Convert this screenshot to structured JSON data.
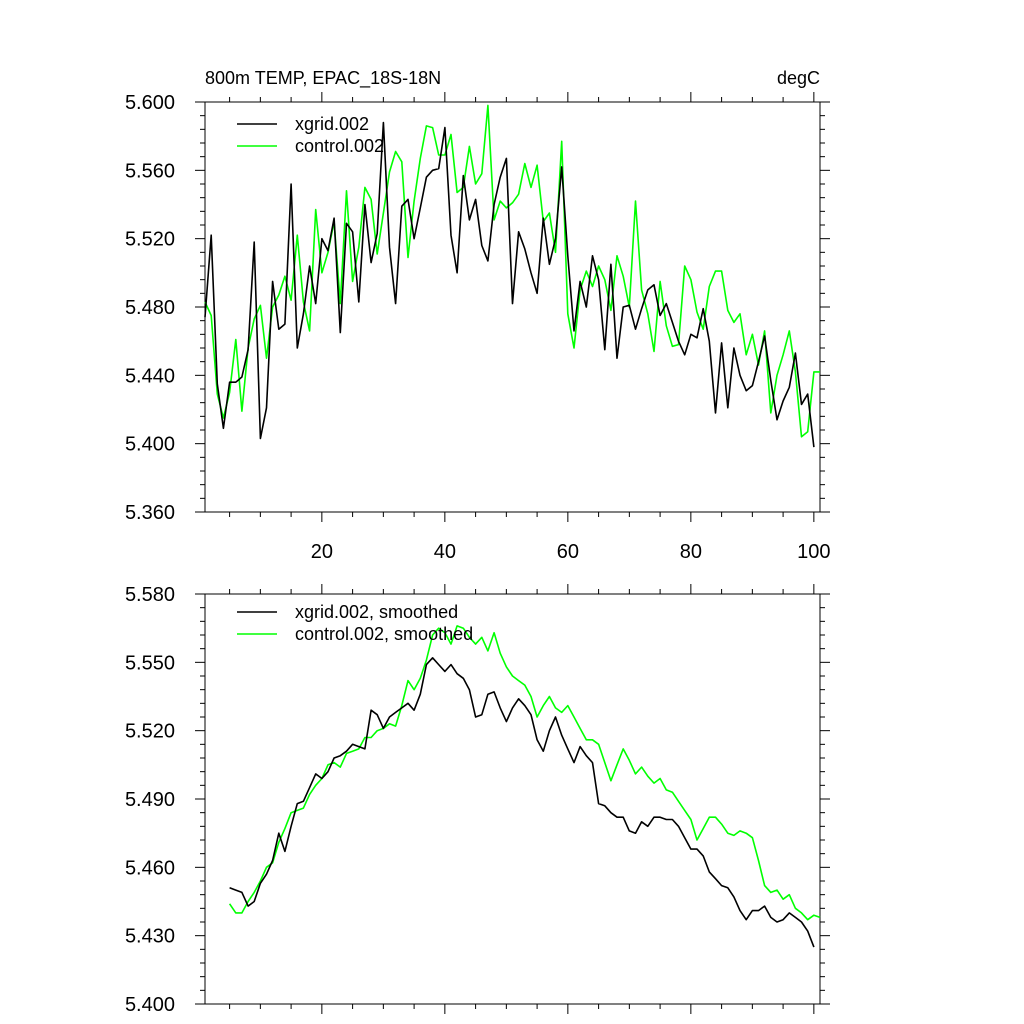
{
  "chart_data": [
    {
      "type": "line",
      "title": "800m TEMP, EPAC_18S-18N",
      "title_right": "degC",
      "xlim": [
        1,
        101
      ],
      "ylim": [
        5.36,
        5.6
      ],
      "ytick_values": [
        5.36,
        5.4,
        5.44,
        5.48,
        5.52,
        5.56,
        5.6
      ],
      "yticks": [
        "5.360",
        "5.400",
        "5.440",
        "5.480",
        "5.520",
        "5.560",
        "5.600"
      ],
      "xtick_values": [
        20,
        40,
        60,
        80,
        100
      ],
      "xticks": [
        "20",
        "40",
        "60",
        "80",
        "100"
      ],
      "grid": false,
      "legend_position": "top-left",
      "series": [
        {
          "name": "xgrid.002",
          "color": "#000000",
          "values": [
            5.474,
            5.522,
            5.435,
            5.409,
            5.436,
            5.436,
            5.439,
            5.455,
            5.518,
            5.403,
            5.421,
            5.495,
            5.467,
            5.47,
            5.552,
            5.456,
            5.476,
            5.504,
            5.482,
            5.52,
            5.513,
            5.532,
            5.465,
            5.529,
            5.524,
            5.483,
            5.54,
            5.506,
            5.523,
            5.588,
            5.515,
            5.482,
            5.539,
            5.543,
            5.52,
            5.538,
            5.556,
            5.56,
            5.561,
            5.585,
            5.522,
            5.5,
            5.557,
            5.531,
            5.543,
            5.516,
            5.507,
            5.54,
            5.556,
            5.567,
            5.482,
            5.524,
            5.514,
            5.5,
            5.488,
            5.532,
            5.505,
            5.52,
            5.562,
            5.51,
            5.466,
            5.495,
            5.48,
            5.51,
            5.496,
            5.455,
            5.505,
            5.45,
            5.48,
            5.481,
            5.467,
            5.479,
            5.49,
            5.493,
            5.475,
            5.482,
            5.471,
            5.46,
            5.452,
            5.464,
            5.462,
            5.479,
            5.46,
            5.418,
            5.459,
            5.421,
            5.456,
            5.44,
            5.431,
            5.434,
            5.448,
            5.463,
            5.437,
            5.414,
            5.425,
            5.433,
            5.453,
            5.423,
            5.429,
            5.398
          ]
        },
        {
          "name": "control.002",
          "color": "#00ff00",
          "values": [
            5.483,
            5.475,
            5.429,
            5.415,
            5.43,
            5.461,
            5.419,
            5.456,
            5.473,
            5.481,
            5.45,
            5.48,
            5.487,
            5.498,
            5.484,
            5.522,
            5.483,
            5.466,
            5.537,
            5.5,
            5.512,
            5.53,
            5.482,
            5.548,
            5.495,
            5.515,
            5.55,
            5.543,
            5.511,
            5.535,
            5.559,
            5.571,
            5.565,
            5.509,
            5.542,
            5.567,
            5.586,
            5.585,
            5.569,
            5.569,
            5.581,
            5.547,
            5.55,
            5.574,
            5.552,
            5.558,
            5.598,
            5.531,
            5.542,
            5.538,
            5.541,
            5.546,
            5.564,
            5.55,
            5.563,
            5.53,
            5.535,
            5.512,
            5.577,
            5.476,
            5.456,
            5.49,
            5.501,
            5.492,
            5.504,
            5.496,
            5.478,
            5.51,
            5.498,
            5.48,
            5.542,
            5.49,
            5.476,
            5.454,
            5.495,
            5.469,
            5.457,
            5.458,
            5.504,
            5.496,
            5.477,
            5.467,
            5.492,
            5.501,
            5.501,
            5.478,
            5.471,
            5.476,
            5.452,
            5.464,
            5.446,
            5.466,
            5.418,
            5.44,
            5.452,
            5.466,
            5.442,
            5.404,
            5.407,
            5.442,
            5.442
          ]
        }
      ]
    },
    {
      "type": "line",
      "title": "",
      "xlim": [
        1,
        101
      ],
      "ylim": [
        5.4,
        5.58
      ],
      "ytick_values": [
        5.4,
        5.43,
        5.46,
        5.49,
        5.52,
        5.55,
        5.58
      ],
      "yticks": [
        "5.400",
        "5.430",
        "5.460",
        "5.490",
        "5.520",
        "5.550",
        "5.580"
      ],
      "xtick_values": [
        20,
        40,
        60,
        80,
        100
      ],
      "xticks": [],
      "grid": false,
      "legend_position": "top-left",
      "series": [
        {
          "name": "xgrid.002, smoothed",
          "color": "#000000",
          "x_start": 5,
          "values": [
            5.451,
            5.45,
            5.449,
            5.443,
            5.445,
            5.453,
            5.457,
            5.463,
            5.475,
            5.467,
            5.478,
            5.488,
            5.489,
            5.495,
            5.501,
            5.499,
            5.502,
            5.508,
            5.509,
            5.511,
            5.514,
            5.513,
            5.512,
            5.529,
            5.527,
            5.521,
            5.526,
            5.528,
            5.53,
            5.532,
            5.529,
            5.536,
            5.549,
            5.552,
            5.549,
            5.546,
            5.549,
            5.545,
            5.543,
            5.538,
            5.526,
            5.527,
            5.536,
            5.537,
            5.53,
            5.524,
            5.53,
            5.534,
            5.531,
            5.527,
            5.516,
            5.511,
            5.52,
            5.526,
            5.518,
            5.512,
            5.506,
            5.513,
            5.509,
            5.506,
            5.488,
            5.487,
            5.484,
            5.482,
            5.482,
            5.476,
            5.475,
            5.48,
            5.478,
            5.482,
            5.482,
            5.481,
            5.481,
            5.478,
            5.473,
            5.468,
            5.468,
            5.465,
            5.458,
            5.455,
            5.452,
            5.451,
            5.447,
            5.441,
            5.437,
            5.441,
            5.441,
            5.443,
            5.438,
            5.436,
            5.437,
            5.44,
            5.438,
            5.436,
            5.432,
            5.425
          ]
        },
        {
          "name": "control.002, smoothed",
          "color": "#00ff00",
          "x_start": 5,
          "values": [
            5.444,
            5.44,
            5.44,
            5.445,
            5.449,
            5.454,
            5.46,
            5.462,
            5.471,
            5.477,
            5.484,
            5.485,
            5.486,
            5.492,
            5.496,
            5.499,
            5.505,
            5.506,
            5.504,
            5.51,
            5.511,
            5.512,
            5.517,
            5.517,
            5.52,
            5.521,
            5.523,
            5.522,
            5.531,
            5.542,
            5.538,
            5.543,
            5.551,
            5.562,
            5.565,
            5.563,
            5.558,
            5.566,
            5.565,
            5.561,
            5.558,
            5.561,
            5.555,
            5.563,
            5.554,
            5.548,
            5.544,
            5.542,
            5.54,
            5.535,
            5.526,
            5.531,
            5.535,
            5.53,
            5.528,
            5.531,
            5.526,
            5.521,
            5.516,
            5.516,
            5.514,
            5.506,
            5.498,
            5.505,
            5.512,
            5.507,
            5.501,
            5.504,
            5.5,
            5.497,
            5.499,
            5.494,
            5.493,
            5.489,
            5.485,
            5.481,
            5.472,
            5.477,
            5.482,
            5.482,
            5.479,
            5.475,
            5.474,
            5.476,
            5.475,
            5.473,
            5.463,
            5.452,
            5.449,
            5.45,
            5.446,
            5.448,
            5.442,
            5.44,
            5.437,
            5.439,
            5.438
          ]
        }
      ]
    }
  ]
}
